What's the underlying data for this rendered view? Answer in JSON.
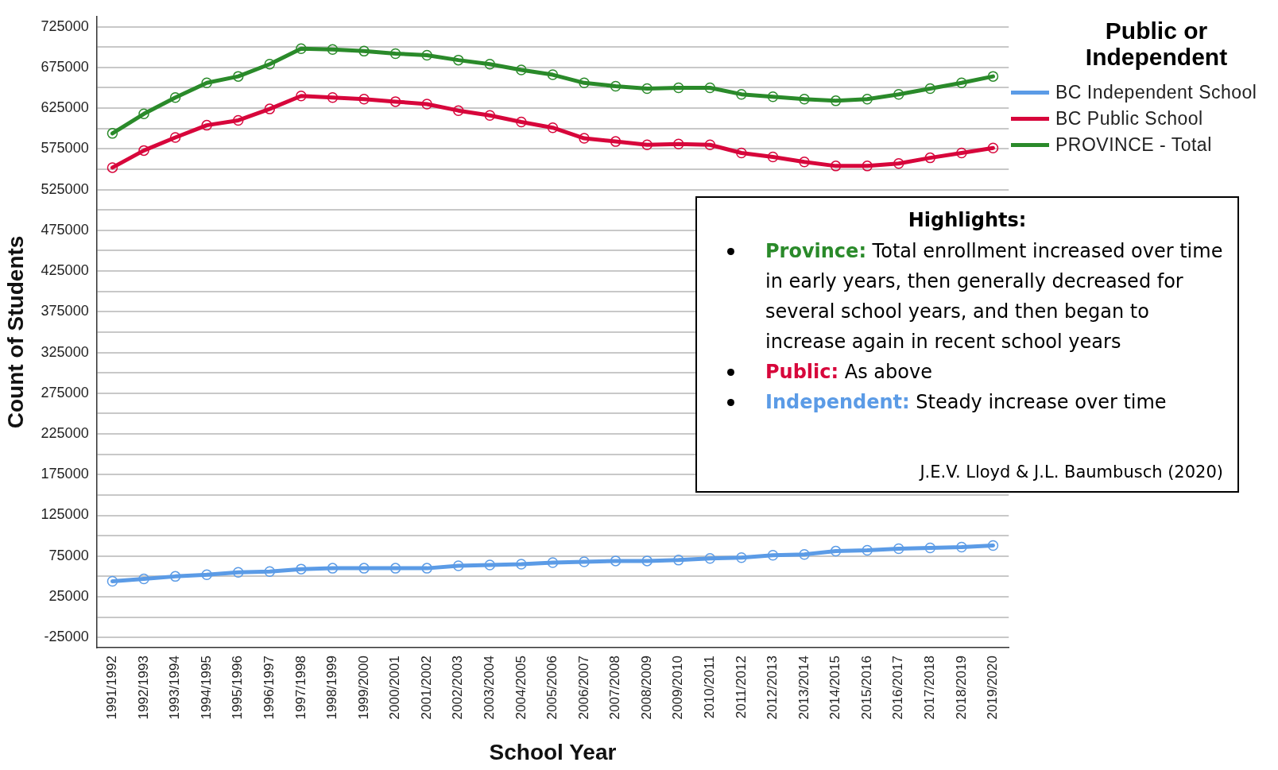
{
  "chart_data": {
    "type": "line",
    "xlabel": "School Year",
    "ylabel": "Count of Students",
    "legend_title": "Public or Independent",
    "categories": [
      "1991/1992",
      "1992/1993",
      "1993/1994",
      "1994/1995",
      "1995/1996",
      "1996/1997",
      "1997/1998",
      "1998/1999",
      "1999/2000",
      "2000/2001",
      "2001/2002",
      "2002/2003",
      "2003/2004",
      "2004/2005",
      "2005/2006",
      "2006/2007",
      "2007/2008",
      "2008/2009",
      "2009/2010",
      "2010/2011",
      "2011/2012",
      "2012/2013",
      "2013/2014",
      "2014/2015",
      "2015/2016",
      "2016/2017",
      "2017/2018",
      "2018/2019",
      "2019/2020"
    ],
    "series": [
      {
        "name": "BC Independent School",
        "color": "#5b9be6",
        "values": [
          44000,
          47000,
          50000,
          52000,
          55000,
          56000,
          59000,
          60000,
          60000,
          60000,
          60000,
          63000,
          64000,
          65000,
          67000,
          68000,
          69000,
          69000,
          70000,
          72000,
          73000,
          76000,
          77000,
          81000,
          82000,
          84000,
          85000,
          86000,
          88000
        ]
      },
      {
        "name": "BC Public School",
        "color": "#d7063b",
        "values": [
          552000,
          573000,
          589000,
          604000,
          610000,
          624000,
          640000,
          638000,
          636000,
          633000,
          630000,
          622000,
          616000,
          608000,
          601000,
          588000,
          584000,
          580000,
          581000,
          580000,
          570000,
          565000,
          559000,
          554000,
          554000,
          557000,
          564000,
          570000,
          576000
        ]
      },
      {
        "name": "PROVINCE - Total",
        "color": "#2a8a2a",
        "values": [
          594000,
          618000,
          638000,
          656000,
          664000,
          679000,
          698000,
          697000,
          695000,
          692000,
          690000,
          684000,
          679000,
          672000,
          666000,
          656000,
          652000,
          649000,
          650000,
          650000,
          642000,
          639000,
          636000,
          634000,
          636000,
          642000,
          649000,
          656000,
          664000
        ]
      }
    ],
    "ylim": [
      -37500,
      737500
    ],
    "yticks": [
      -25000,
      {
        "value": 0,
        "label": null
      },
      25000,
      {
        "value": 50000,
        "label": null
      },
      75000,
      {
        "value": 100000,
        "label": null
      },
      125000,
      {
        "value": 150000,
        "label": null
      },
      175000,
      {
        "value": 200000,
        "label": null
      },
      225000,
      {
        "value": 250000,
        "label": null
      },
      275000,
      {
        "value": 300000,
        "label": null
      },
      325000,
      {
        "value": 350000,
        "label": null
      },
      375000,
      {
        "value": 400000,
        "label": null
      },
      425000,
      {
        "value": 450000,
        "label": null
      },
      475000,
      {
        "value": 500000,
        "label": null
      },
      525000,
      {
        "value": 550000,
        "label": null
      },
      575000,
      {
        "value": 600000,
        "label": null
      },
      625000,
      {
        "value": 650000,
        "label": null
      },
      675000,
      {
        "value": 700000,
        "label": null
      },
      725000
    ],
    "grid": "y",
    "legend": "top right",
    "marker": "circle",
    "line_style": "solid",
    "annotations": [
      "Highlights:",
      "Province: Total enrollment increased over time in early years, then generally decreased for several school years, and then began to increase again in recent school years",
      "Public: As above",
      "Independent: Steady increase over time",
      "J.E.V. Lloyd & J.L. Baumbusch (2020)"
    ]
  }
}
